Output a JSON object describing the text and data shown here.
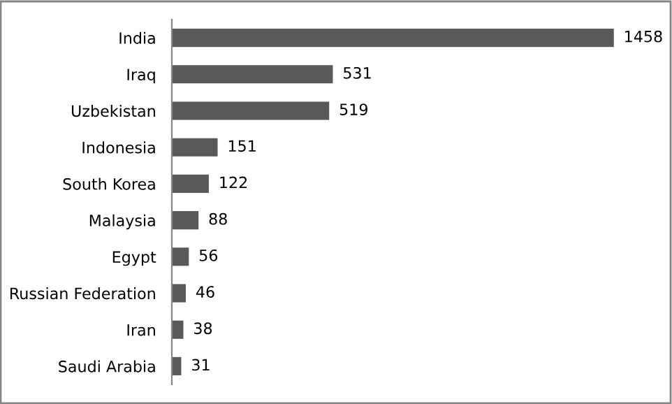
{
  "chart_data": {
    "type": "bar",
    "orientation": "horizontal",
    "categories": [
      "India",
      "Iraq",
      "Uzbekistan",
      "Indonesia",
      "South Korea",
      "Malaysia",
      "Egypt",
      "Russian Federation",
      "Iran",
      "Saudi Arabia"
    ],
    "values": [
      1458,
      531,
      519,
      151,
      122,
      88,
      56,
      46,
      38,
      31
    ],
    "color": "#595959",
    "data_labels": true,
    "grid": false,
    "legend": false
  }
}
